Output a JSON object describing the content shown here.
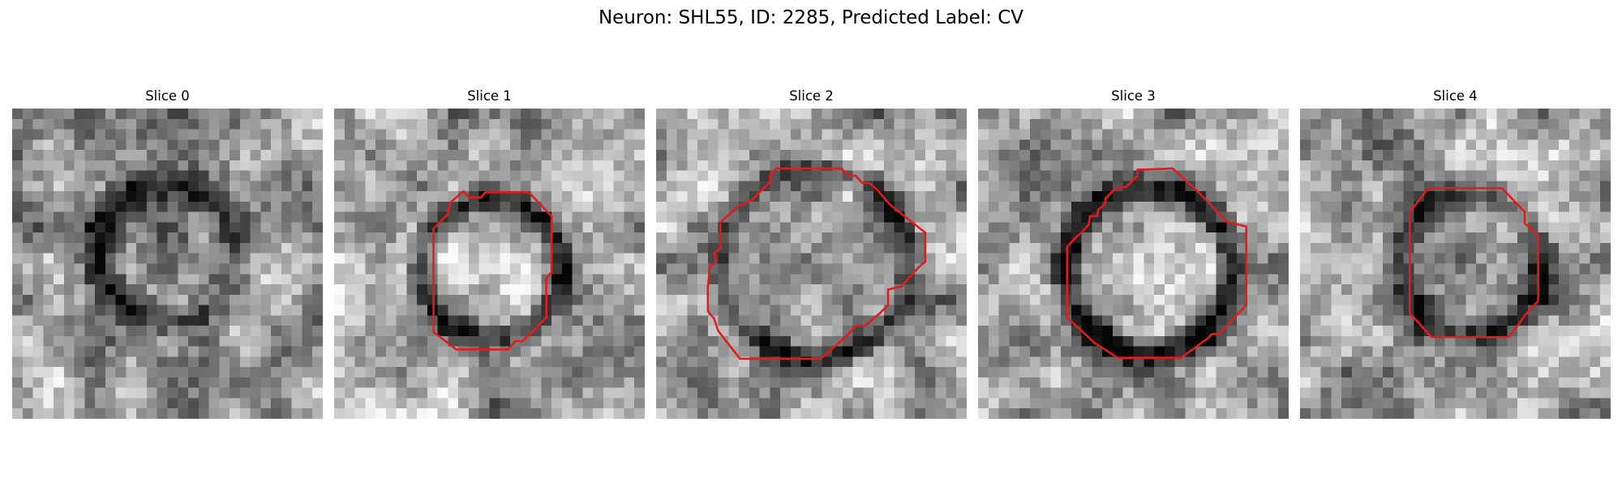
{
  "figure": {
    "title": "Neuron: SHL55, ID: 2285, Predicted Label: CV",
    "contour_color": "#e41a1c"
  },
  "panels": [
    {
      "title": "Slice 0",
      "has_contour": false
    },
    {
      "title": "Slice 1",
      "has_contour": true
    },
    {
      "title": "Slice 2",
      "has_contour": true
    },
    {
      "title": "Slice 3",
      "has_contour": true
    },
    {
      "title": "Slice 4",
      "has_contour": true
    }
  ]
}
